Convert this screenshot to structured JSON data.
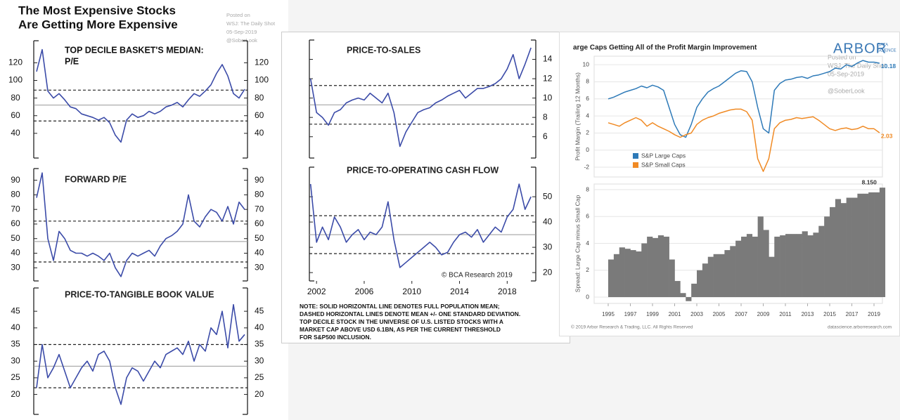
{
  "panels": {
    "left_title_lines": [
      "The Most Expensive Stocks",
      "Are Getting More Expensive"
    ],
    "left_posted_lines": [
      "Posted on",
      "WSJ: The Daily Shot",
      "05-Sep-2019",
      "@SoberLook"
    ],
    "bca_credit": "© BCA Research 2019",
    "note_lines": [
      "NOTE: SOLID HORIZONTAL LINE DENOTES FULL POPULATION MEAN;",
      "DASHED HORIZONTAL LINES DENOTE MEAN +/- ONE STANDARD DEVIATION.",
      "TOP DECILE STOCK IN THE UNIVERSE OF U.S. LISTED STOCKS WITH A",
      "MARKET CAP ABOVE USD 6.1BN, AS PER THE CURRENT THRESHOLD",
      "FOR S&P500 INCLUSION."
    ],
    "arbor_logo": "ARBOR",
    "arbor_logo_sub": [
      "DATA",
      "SCIENCE"
    ],
    "arbor_posted_lines": [
      "Posted on",
      "WSJ: The Daily Shot",
      "05-Sep-2019",
      "@SoberLook"
    ],
    "arbor_footer_left": "© 2019 Arbor Research & Trading, LLC. All Rights Reserved",
    "arbor_footer_right": "datascience.arborresearch.com"
  },
  "chart_data": [
    {
      "type": "line",
      "title_lines": [
        "TOP DECILE BASKET'S MEDIAN:",
        "P/E"
      ],
      "color": "#3b4ba8",
      "ytick_labels": "both",
      "values": [
        110,
        135,
        88,
        80,
        85,
        78,
        70,
        68,
        62,
        60,
        58,
        55,
        58,
        52,
        38,
        30,
        55,
        62,
        58,
        60,
        65,
        62,
        65,
        70,
        72,
        75,
        70,
        78,
        85,
        82,
        88,
        95,
        108,
        118,
        105,
        85,
        80,
        90
      ],
      "ylim": [
        12,
        145
      ],
      "yticks": [
        40,
        60,
        80,
        100,
        120
      ],
      "hlines": [
        {
          "value": 72,
          "style": "solid"
        },
        {
          "value": 89,
          "style": "dashed"
        },
        {
          "value": 54,
          "style": "dashed"
        }
      ]
    },
    {
      "type": "line",
      "title": "FORWARD P/E",
      "color": "#3b4ba8",
      "ytick_labels": "both",
      "values": [
        78,
        95,
        50,
        35,
        55,
        50,
        42,
        40,
        40,
        38,
        40,
        38,
        35,
        40,
        30,
        24,
        35,
        40,
        38,
        40,
        42,
        38,
        45,
        50,
        52,
        55,
        60,
        80,
        62,
        58,
        65,
        70,
        68,
        62,
        72,
        60,
        75,
        70
      ],
      "ylim": [
        21,
        98
      ],
      "yticks": [
        30,
        40,
        50,
        60,
        70,
        80,
        90
      ],
      "hlines": [
        {
          "value": 48,
          "style": "solid"
        },
        {
          "value": 62,
          "style": "dashed"
        },
        {
          "value": 34,
          "style": "dashed"
        }
      ]
    },
    {
      "type": "line",
      "title": "PRICE-TO-TANGIBLE BOOK VALUE",
      "color": "#3b4ba8",
      "ytick_labels": "both",
      "values": [
        22,
        35,
        25,
        28,
        32,
        27,
        22,
        25,
        28,
        30,
        27,
        32,
        33,
        30,
        22,
        17,
        25,
        28,
        27,
        24,
        27,
        30,
        28,
        32,
        33,
        34,
        32,
        36,
        30,
        35,
        33,
        40,
        38,
        45,
        34,
        47,
        36,
        38
      ],
      "ylim": [
        14,
        52
      ],
      "yticks": [
        20,
        25,
        30,
        35,
        40,
        45
      ],
      "hlines": [
        {
          "value": 28.5,
          "style": "solid"
        },
        {
          "value": 35,
          "style": "dashed"
        },
        {
          "value": 22,
          "style": "dashed"
        }
      ]
    },
    {
      "type": "line",
      "title": "PRICE-TO-SALES",
      "color": "#3b4ba8",
      "ytick_labels": "right",
      "x": [
        2001.5,
        2002,
        2002.5,
        2003,
        2003.5,
        2004,
        2004.5,
        2005,
        2005.5,
        2006,
        2006.5,
        2007,
        2007.5,
        2008,
        2008.5,
        2009,
        2009.5,
        2010,
        2010.5,
        2011,
        2011.5,
        2012,
        2012.5,
        2013,
        2013.5,
        2014,
        2014.5,
        2015,
        2015.5,
        2016,
        2016.5,
        2017,
        2017.5,
        2018,
        2018.5,
        2019,
        2019.5,
        2020
      ],
      "xlim": [
        2001.4,
        2020.4
      ],
      "values": [
        12,
        8.5,
        8,
        7.2,
        8.5,
        8.8,
        9.5,
        9.8,
        10,
        9.8,
        10.5,
        10,
        9.5,
        10.5,
        8.5,
        5,
        6.5,
        7.5,
        8.5,
        8.8,
        9,
        9.5,
        9.8,
        10.2,
        10.5,
        10.8,
        10,
        10.5,
        11,
        11,
        11.2,
        11.5,
        12,
        13,
        14.5,
        12,
        13.5,
        15.2
      ],
      "ylim": [
        3.8,
        16
      ],
      "yticks": [
        6,
        8,
        10,
        12,
        14
      ],
      "hlines": [
        {
          "value": 9.3,
          "style": "solid"
        },
        {
          "value": 11.3,
          "style": "dashed"
        },
        {
          "value": 7.3,
          "style": "dashed"
        }
      ]
    },
    {
      "type": "line",
      "title": "PRICE-TO-OPERATING CASH FLOW",
      "color": "#3b4ba8",
      "ytick_labels": "right",
      "x": [
        2001.5,
        2002,
        2002.5,
        2003,
        2003.5,
        2004,
        2004.5,
        2005,
        2005.5,
        2006,
        2006.5,
        2007,
        2007.5,
        2008,
        2008.5,
        2009,
        2009.5,
        2010,
        2010.5,
        2011,
        2011.5,
        2012,
        2012.5,
        2013,
        2013.5,
        2014,
        2014.5,
        2015,
        2015.5,
        2016,
        2016.5,
        2017,
        2017.5,
        2018,
        2018.5,
        2019,
        2019.5,
        2020
      ],
      "xlim": [
        2001.4,
        2020.4
      ],
      "xticks": [
        2002,
        2006,
        2010,
        2014,
        2018
      ],
      "values": [
        55,
        32,
        38,
        33,
        42,
        38,
        32,
        35,
        37,
        33,
        36,
        35,
        38,
        48,
        33,
        22,
        24,
        26,
        28,
        30,
        32,
        30,
        27,
        28,
        32,
        35,
        36,
        34,
        37,
        32,
        35,
        38,
        36,
        42,
        45,
        55,
        45,
        50
      ],
      "ylim": [
        16.7,
        61.7
      ],
      "yticks": [
        20,
        30,
        40,
        50
      ],
      "hlines": [
        {
          "value": 35,
          "style": "solid"
        },
        {
          "value": 42.5,
          "style": "dashed"
        },
        {
          "value": 27.5,
          "style": "dashed"
        }
      ]
    },
    {
      "type": "line",
      "title": "arge Caps Getting All of the Profit Margin Improvement",
      "y_label": "Profit Margin (Trailing 12 Months)",
      "ytick_labels": "left",
      "grid": true,
      "legend": "lower-left",
      "data_labels": "last",
      "x": [
        1995,
        1995.5,
        1996,
        1996.5,
        1997,
        1997.5,
        1998,
        1998.5,
        1999,
        1999.5,
        2000,
        2000.5,
        2001,
        2001.5,
        2002,
        2002.5,
        2003,
        2003.5,
        2004,
        2004.5,
        2005,
        2005.5,
        2006,
        2006.5,
        2007,
        2007.5,
        2008,
        2008.5,
        2009,
        2009.5,
        2010,
        2010.5,
        2011,
        2011.5,
        2012,
        2012.5,
        2013,
        2013.5,
        2014,
        2014.5,
        2015,
        2015.5,
        2016,
        2016.5,
        2017,
        2017.5,
        2018,
        2018.5,
        2019,
        2019.5
      ],
      "xlim": [
        1993.73,
        2019.76
      ],
      "series": [
        {
          "name": "S&P Large Caps",
          "color": "#2e7ab8",
          "values": [
            6,
            6.2,
            6.5,
            6.8,
            7,
            7.2,
            7.5,
            7.3,
            7.6,
            7.4,
            7,
            5,
            3,
            1.8,
            1.5,
            3,
            5,
            6,
            6.8,
            7.2,
            7.5,
            8,
            8.5,
            9,
            9.3,
            9.2,
            8,
            5,
            2.5,
            2,
            7,
            7.8,
            8.2,
            8.3,
            8.5,
            8.6,
            8.4,
            8.7,
            8.8,
            9,
            9.2,
            9.6,
            9.5,
            10,
            9.8,
            10.2,
            10.5,
            10.3,
            10.3,
            10.18
          ]
        },
        {
          "name": "S&P Small Caps",
          "color": "#f08a24",
          "values": [
            3.2,
            3,
            2.8,
            3.2,
            3.5,
            3.8,
            3.5,
            2.8,
            3.2,
            2.8,
            2.5,
            2.2,
            1.8,
            1.5,
            1.8,
            2,
            3,
            3.5,
            3.8,
            4,
            4.3,
            4.5,
            4.7,
            4.8,
            4.8,
            4.5,
            3.5,
            -1,
            -2.5,
            -1,
            2.5,
            3.2,
            3.5,
            3.6,
            3.8,
            3.7,
            3.8,
            3.9,
            3.5,
            3,
            2.5,
            2.3,
            2.5,
            2.6,
            2.4,
            2.5,
            2.8,
            2.5,
            2.5,
            2.03
          ]
        }
      ],
      "ylim": [
        -3.15,
        11
      ],
      "yticks": [
        -2,
        0,
        2,
        4,
        6,
        8,
        10
      ]
    },
    {
      "type": "area",
      "y_label": "Spread: Large Cap minus Small Cap",
      "color": "#7a7a7a",
      "ytick_labels": "left",
      "grid": true,
      "x": [
        1995,
        1995.5,
        1996,
        1996.5,
        1997,
        1997.5,
        1998,
        1998.5,
        1999,
        1999.5,
        2000,
        2000.5,
        2001,
        2001.5,
        2002,
        2002.5,
        2003,
        2003.5,
        2004,
        2004.5,
        2005,
        2005.5,
        2006,
        2006.5,
        2007,
        2007.5,
        2008,
        2008.5,
        2009,
        2009.5,
        2010,
        2010.5,
        2011,
        2011.5,
        2012,
        2012.5,
        2013,
        2013.5,
        2014,
        2014.5,
        2015,
        2015.5,
        2016,
        2016.5,
        2017,
        2017.5,
        2018,
        2018.5,
        2019,
        2019.5
      ],
      "xlim": [
        1993.73,
        2019.76
      ],
      "xticks": [
        1995,
        1997,
        1999,
        2001,
        2003,
        2005,
        2007,
        2009,
        2011,
        2013,
        2015,
        2017,
        2019
      ],
      "values": [
        2.8,
        3.2,
        3.7,
        3.6,
        3.5,
        3.4,
        4,
        4.5,
        4.4,
        4.6,
        4.5,
        2.8,
        1.2,
        0.3,
        -0.3,
        1,
        2,
        2.5,
        3,
        3.2,
        3.2,
        3.5,
        3.8,
        4.2,
        4.5,
        4.7,
        4.5,
        6,
        5,
        3,
        4.5,
        4.6,
        4.7,
        4.7,
        4.7,
        4.9,
        4.6,
        4.8,
        5.3,
        6,
        6.7,
        7.3,
        7,
        7.4,
        7.4,
        7.7,
        7.7,
        7.8,
        7.8,
        8.15
      ],
      "value_labels": [
        null,
        null,
        null,
        null,
        null,
        null,
        null,
        null,
        null,
        null,
        null,
        null,
        null,
        null,
        null,
        null,
        null,
        null,
        null,
        null,
        null,
        null,
        null,
        null,
        null,
        null,
        null,
        null,
        null,
        null,
        null,
        null,
        null,
        null,
        null,
        null,
        null,
        null,
        null,
        null,
        null,
        null,
        null,
        null,
        null,
        null,
        null,
        null,
        null,
        "8.150"
      ],
      "ylim": [
        -0.47,
        8.42
      ],
      "yticks": [
        0,
        2,
        4,
        6,
        8
      ]
    }
  ]
}
